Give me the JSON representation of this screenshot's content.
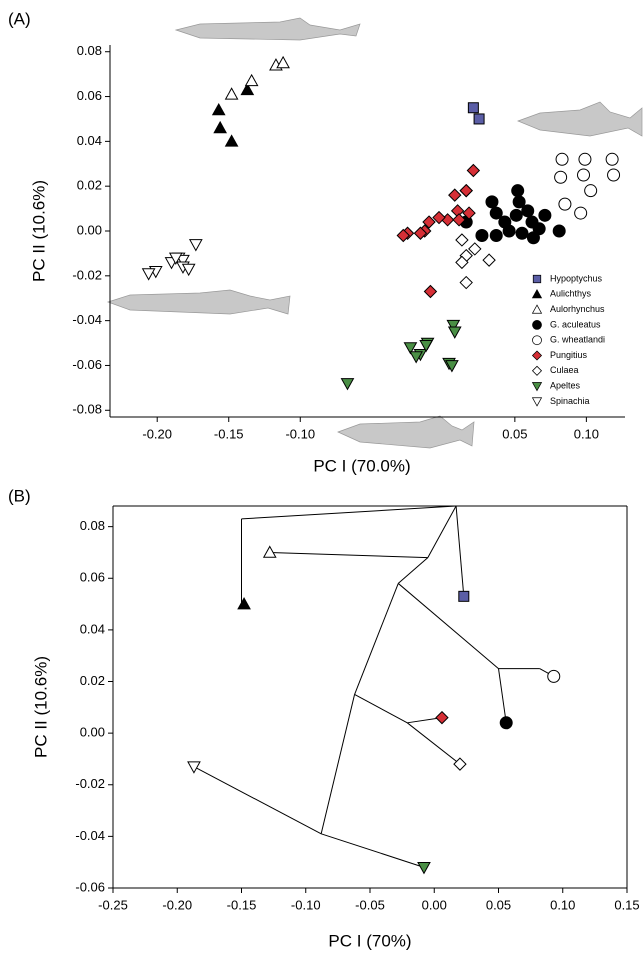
{
  "chart_data": [
    {
      "type": "scatter",
      "title": "(A)",
      "xlabel": "PC I (70.0%)",
      "ylabel": "PC II (10.6%)",
      "xlim": [
        -0.233,
        0.127
      ],
      "ylim": [
        -0.083,
        0.083
      ],
      "xticks": [
        {
          "value": -0.2,
          "label": "-0.20"
        },
        -0.15,
        {
          "value": -0.1,
          "label": "-0.10"
        },
        0.05,
        {
          "value": 0.1,
          "label": "0.10"
        }
      ],
      "yticks": [
        0.08,
        0.06,
        0.04,
        0.02,
        {
          "value": 0,
          "label": "0.00"
        },
        -0.02,
        -0.04,
        -0.06,
        -0.08
      ],
      "frame": false,
      "legend": "lower right",
      "series": [
        {
          "name": "Hypoptychus",
          "color": "#5b5ea6",
          "marker": "square",
          "x": [
            0.021,
            0.025
          ],
          "values": [
            0.055,
            0.05
          ]
        },
        {
          "name": "Aulichthys",
          "color": "#000000",
          "marker": "triangle-up",
          "x": [
            -0.157,
            -0.137,
            -0.156,
            -0.148
          ],
          "values": [
            0.054,
            0.063,
            0.046,
            0.04
          ]
        },
        {
          "name": "Aulorhynchus",
          "color": "#ffffff",
          "marker": "triangle-up",
          "x": [
            -0.148,
            -0.134,
            -0.117,
            -0.112
          ],
          "values": [
            0.061,
            0.067,
            0.074,
            0.075
          ]
        },
        {
          "name": "G. aculeatus",
          "color": "#000000",
          "marker": "circle",
          "x": [
            0.016,
            0.034,
            0.037,
            0.043,
            0.052,
            0.053,
            0.051,
            0.059,
            0.062,
            0.067,
            0.046,
            0.055,
            0.063,
            0.037,
            0.081,
            0.027,
            0.071
          ],
          "values": [
            0.004,
            0.013,
            0.008,
            0.004,
            0.018,
            0.013,
            0.007,
            0.009,
            0.004,
            0.001,
            0,
            -0.001,
            -0.003,
            -0.002,
            0,
            -0.002,
            0.007
          ]
        },
        {
          "name": "G. wheatlandi",
          "color": "#ffffff",
          "marker": "circle",
          "x": [
            0.083,
            0.099,
            0.082,
            0.098,
            0.118,
            0.119,
            0.085,
            0.103,
            0.096
          ],
          "values": [
            0.032,
            0.032,
            0.024,
            0.025,
            0.032,
            0.025,
            0.012,
            0.018,
            0.008
          ]
        },
        {
          "name": "Pungitius",
          "color": "#d62f36",
          "marker": "diamond",
          "x": [
            0.021,
            0.016,
            0.008,
            0.01,
            0.003,
            -0.003,
            -0.01,
            -0.013,
            -0.016,
            -0.025,
            -0.028,
            0.011,
            0.018,
            -0.009,
            0.016
          ],
          "values": [
            0.027,
            0.018,
            0.016,
            0.009,
            0.005,
            0.006,
            0.004,
            0,
            -0.001,
            -0.001,
            -0.002,
            0.005,
            0.008,
            -0.027,
            0.018
          ]
        },
        {
          "name": "Culaea",
          "color": "#ffffff",
          "marker": "diamond",
          "x": [
            0.013,
            0.016,
            0.013,
            0.032,
            0.016,
            0.022
          ],
          "values": [
            -0.004,
            -0.011,
            -0.014,
            -0.013,
            -0.023,
            -0.008
          ]
        },
        {
          "name": "Apeltes",
          "color": "#4a8f45",
          "marker": "triangle-down",
          "x": [
            0.007,
            0.008,
            -0.023,
            -0.016,
            -0.011,
            -0.019,
            0.004,
            0.006,
            -0.067,
            -0.012
          ],
          "values": [
            -0.042,
            -0.045,
            -0.052,
            -0.055,
            -0.05,
            -0.056,
            -0.059,
            -0.06,
            -0.068,
            -0.051
          ]
        },
        {
          "name": "Spinachia",
          "color": "#ffffff",
          "marker": "triangle-down",
          "x": [
            -0.173,
            -0.185,
            -0.182,
            -0.19,
            -0.187,
            -0.201,
            -0.206,
            -0.182,
            -0.178
          ],
          "values": [
            -0.006,
            -0.012,
            -0.013,
            -0.014,
            -0.012,
            -0.018,
            -0.019,
            -0.016,
            -0.017
          ]
        }
      ]
    },
    {
      "type": "phylomorphospace",
      "title": "(B)",
      "xlabel": "PC I (70%)",
      "ylabel": "PC II (10.6%)",
      "xlim": [
        -0.25,
        0.15
      ],
      "ylim": [
        -0.06,
        0.088
      ],
      "xticks": [
        -0.25,
        {
          "value": -0.2,
          "label": "-0.20"
        },
        -0.15,
        {
          "value": -0.1,
          "label": "-0.10"
        },
        -0.05,
        {
          "value": 0,
          "label": "0.00"
        },
        0.05,
        {
          "value": 0.1,
          "label": "0.10"
        },
        0.15
      ],
      "yticks": [
        0.08,
        0.06,
        0.04,
        0.02,
        {
          "value": 0,
          "label": "0.00"
        },
        -0.02,
        -0.04,
        -0.06
      ],
      "frame": true,
      "branches": [
        [
          0.017,
          0.088,
          -0.15,
          0.083
        ],
        [
          -0.15,
          0.083,
          -0.15,
          0.05
        ],
        [
          0.017,
          0.088,
          0.023,
          0.053
        ],
        [
          0.017,
          0.088,
          -0.005,
          0.068
        ],
        [
          -0.005,
          0.068,
          -0.128,
          0.07
        ],
        [
          -0.005,
          0.068,
          -0.028,
          0.058
        ],
        [
          -0.028,
          0.058,
          0.05,
          0.025
        ],
        [
          0.05,
          0.025,
          0.082,
          0.025
        ],
        [
          0.082,
          0.025,
          0.093,
          0.022
        ],
        [
          0.05,
          0.025,
          0.056,
          0.004
        ],
        [
          -0.028,
          0.058,
          -0.062,
          0.015
        ],
        [
          -0.062,
          0.015,
          -0.021,
          0.004
        ],
        [
          -0.021,
          0.004,
          0.006,
          0.006
        ],
        [
          -0.021,
          0.004,
          0.02,
          -0.012
        ],
        [
          -0.062,
          0.015,
          -0.088,
          -0.039
        ],
        [
          -0.088,
          -0.039,
          -0.187,
          -0.013
        ],
        [
          -0.088,
          -0.039,
          -0.008,
          -0.052
        ]
      ],
      "series": [
        {
          "color": "#000000",
          "marker": "triangle-up",
          "x": [
            -0.148
          ],
          "values": [
            0.05
          ]
        },
        {
          "color": "#ffffff",
          "marker": "triangle-up",
          "x": [
            -0.128
          ],
          "values": [
            0.07
          ]
        },
        {
          "color": "#5b5ea6",
          "marker": "square",
          "x": [
            0.023
          ],
          "values": [
            0.053
          ]
        },
        {
          "color": "#ffffff",
          "marker": "circle",
          "x": [
            0.093
          ],
          "values": [
            0.022
          ]
        },
        {
          "color": "#000000",
          "marker": "circle",
          "x": [
            0.056
          ],
          "values": [
            0.004
          ]
        },
        {
          "color": "#d62f36",
          "marker": "diamond",
          "x": [
            0.006
          ],
          "values": [
            0.006
          ]
        },
        {
          "color": "#ffffff",
          "marker": "diamond",
          "x": [
            0.02
          ],
          "values": [
            -0.012
          ]
        },
        {
          "color": "#ffffff",
          "marker": "triangle-down",
          "x": [
            -0.187
          ],
          "values": [
            -0.013
          ]
        },
        {
          "color": "#4a8f45",
          "marker": "triangle-down",
          "x": [
            -0.008
          ],
          "values": [
            -0.052
          ]
        }
      ]
    }
  ]
}
